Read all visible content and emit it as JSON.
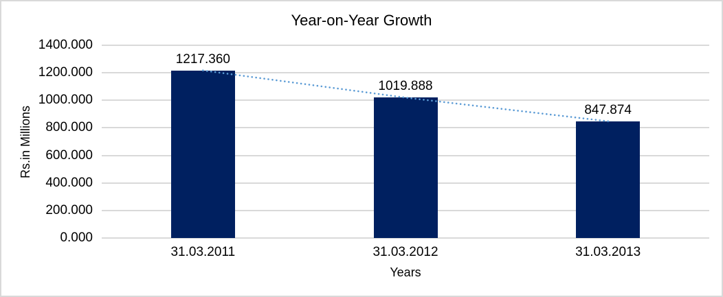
{
  "chart_data": {
    "type": "bar",
    "title": "Year-on-Year Growth",
    "xlabel": "Years",
    "ylabel": "Rs.in Millions",
    "categories": [
      "31.03.2011",
      "31.03.2012",
      "31.03.2013"
    ],
    "series": [
      {
        "name": "Rs.in Millions",
        "type": "bar",
        "color": "#002060",
        "values": [
          1217.36,
          1019.888,
          847.874
        ],
        "data_labels": [
          "1217.360",
          "1019.888",
          "847.874"
        ]
      },
      {
        "name": "Trendline",
        "type": "dotted_line",
        "color": "#5B9BD5",
        "values": [
          1217.36,
          1019.888,
          847.874
        ]
      }
    ],
    "y_axis": {
      "min": 0,
      "max": 1400,
      "ticks": [
        {
          "value": 1400,
          "label": "1400.000"
        },
        {
          "value": 1200,
          "label": "1200.000"
        },
        {
          "value": 1000,
          "label": "1000.000"
        },
        {
          "value": 800,
          "label": "800.000"
        },
        {
          "value": 600,
          "label": "600.000"
        },
        {
          "value": 400,
          "label": "400.000"
        },
        {
          "value": 200,
          "label": "200.000"
        },
        {
          "value": 0,
          "label": "0.000"
        }
      ]
    },
    "grid": true,
    "legend_position": "none",
    "colors": {
      "gridline": "#D9D9D9",
      "text": "#000000",
      "frame_border": "#D9D9D9",
      "background": "#FFFFFF"
    }
  }
}
